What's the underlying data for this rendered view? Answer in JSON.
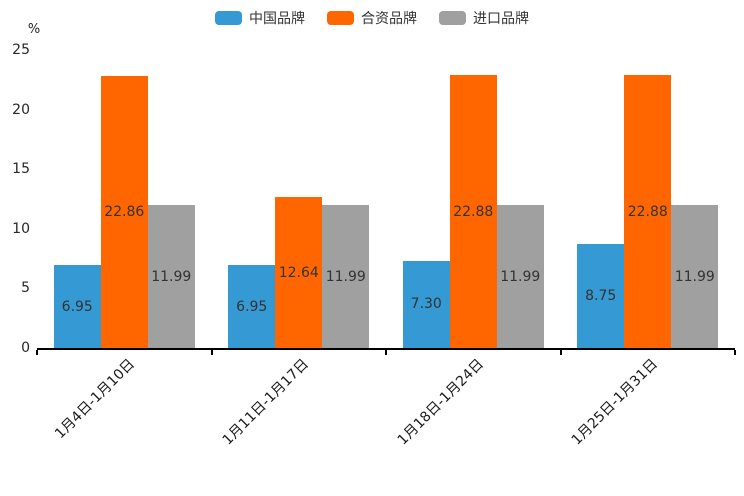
{
  "chart_data": {
    "type": "bar",
    "title": "",
    "ylabel": "%",
    "xlabel": "",
    "ylim": [
      0,
      25
    ],
    "yticks": [
      0,
      5,
      10,
      15,
      20,
      25
    ],
    "grid": false,
    "legend_position": "top-center",
    "value_label_decimals": 2,
    "categories": [
      "1月4日-1月10日",
      "1月11日-1月17日",
      "1月18日-1月24日",
      "1月25日-1月31日"
    ],
    "series": [
      {
        "name": "中国品牌",
        "color": "#3599D3",
        "values": [
          6.95,
          6.95,
          7.3,
          8.75
        ]
      },
      {
        "name": "合资品牌",
        "color": "#FF6600",
        "values": [
          22.86,
          12.64,
          22.88,
          22.88
        ]
      },
      {
        "name": "进口品牌",
        "color": "#A0A0A0",
        "values": [
          11.99,
          11.99,
          11.99,
          11.99
        ]
      }
    ]
  }
}
